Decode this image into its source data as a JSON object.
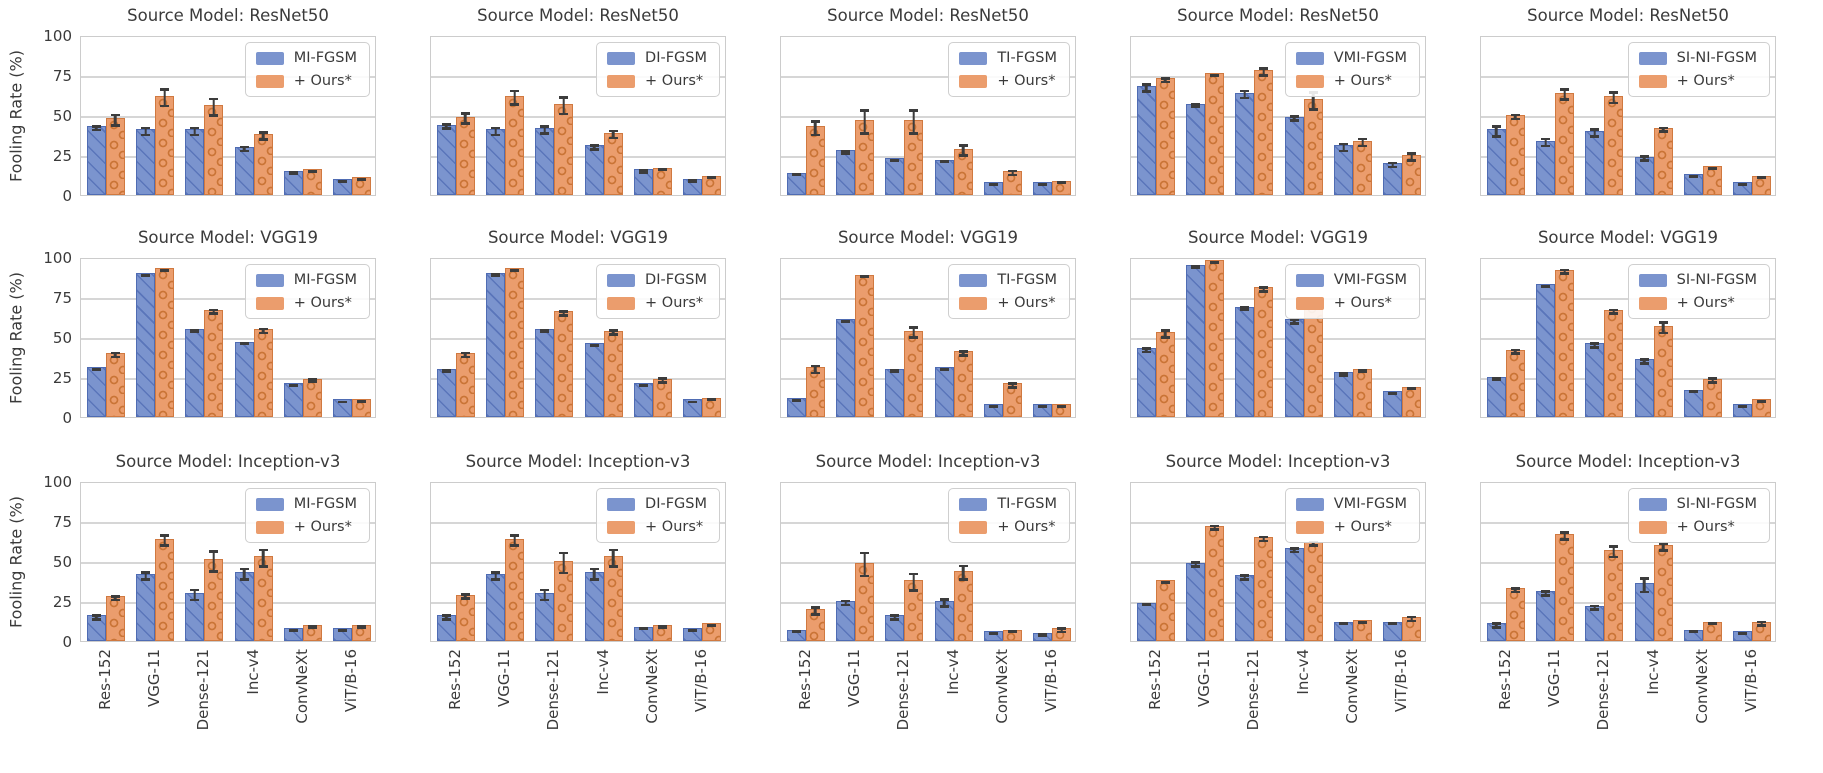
{
  "figure_title": "",
  "chart_data": {
    "type": "bar",
    "grid": {
      "rows": 3,
      "cols": 5
    },
    "categories": [
      "Res-152",
      "VGG-11",
      "Dense-121",
      "Inc-v4",
      "ConvNeXt",
      "ViT/B-16"
    ],
    "ylabel": "Fooling Rate (%)",
    "ylim": [
      0,
      100
    ],
    "yticks": [
      0,
      25,
      50,
      75,
      100
    ],
    "grid_on": true,
    "legend_position": "upper right",
    "colors": {
      "baseline_fill": "#7b94ce",
      "baseline_edge": "#4f6cb3",
      "ours_fill": "#eb9d6d",
      "ours_edge": "#d07940",
      "error_bar": "#3c3c3c",
      "gridline": "#d6d6d6",
      "text": "#3a3a3a"
    },
    "ours_label": "+ Ours*",
    "rows": [
      {
        "source_title": "Source Model: ResNet50",
        "panels": [
          {
            "baseline_label": "MI-FGSM",
            "baseline": {
              "values": [
                43,
                41,
                41,
                30,
                15,
                10
              ],
              "errors": [
                2,
                3,
                3,
                2,
                1.5,
                0.5
              ]
            },
            "ours": {
              "values": [
                48,
                62,
                56,
                38,
                16,
                11
              ],
              "errors": [
                4,
                6,
                6,
                3,
                1,
                1
              ]
            }
          },
          {
            "baseline_label": "DI-FGSM",
            "baseline": {
              "values": [
                44,
                41,
                42,
                31,
                16,
                10
              ],
              "errors": [
                2,
                3,
                3,
                2,
                1.5,
                1
              ]
            },
            "ours": {
              "values": [
                49,
                62,
                57,
                39,
                17,
                12
              ],
              "errors": [
                4,
                5,
                6,
                3,
                1,
                1
              ]
            }
          },
          {
            "baseline_label": "TI-FGSM",
            "baseline": {
              "values": [
                14,
                28,
                23,
                22,
                8,
                8
              ],
              "errors": [
                1,
                1.5,
                1,
                1,
                1,
                1
              ]
            },
            "ours": {
              "values": [
                43,
                47,
                47,
                29,
                15,
                9
              ],
              "errors": [
                5,
                8,
                8,
                4,
                2,
                1
              ]
            }
          },
          {
            "baseline_label": "VMI-FGSM",
            "baseline": {
              "values": [
                68,
                57,
                64,
                49,
                31,
                20
              ],
              "errors": [
                3,
                1.5,
                3,
                2,
                3,
                2
              ]
            },
            "ours": {
              "values": [
                73,
                76,
                78,
                60,
                34,
                25
              ],
              "errors": [
                2,
                1,
                3,
                6,
                3,
                3
              ]
            }
          },
          {
            "baseline_label": "SI-NI-FGSM",
            "baseline": {
              "values": [
                41,
                34,
                40,
                24,
                13,
                8
              ],
              "errors": [
                4,
                3,
                3,
                2,
                1,
                1
              ]
            },
            "ours": {
              "values": [
                50,
                64,
                62,
                42,
                18,
                12
              ],
              "errors": [
                2,
                4,
                4,
                2,
                1,
                1
              ]
            }
          }
        ]
      },
      {
        "source_title": "Source Model: VGG19",
        "panels": [
          {
            "baseline_label": "MI-FGSM",
            "baseline": {
              "values": [
                31,
                90,
                55,
                47,
                21,
                11
              ],
              "errors": [
                1,
                0.5,
                1,
                1,
                1,
                0.5
              ]
            },
            "ours": {
              "values": [
                40,
                93,
                67,
                55,
                24,
                11
              ],
              "errors": [
                2,
                1,
                2,
                2,
                1.5,
                1
              ]
            }
          },
          {
            "baseline_label": "DI-FGSM",
            "baseline": {
              "values": [
                30,
                90,
                55,
                46,
                21,
                11
              ],
              "errors": [
                1,
                1,
                1,
                1,
                1,
                0.5
              ]
            },
            "ours": {
              "values": [
                40,
                93,
                66,
                54,
                24,
                12
              ],
              "errors": [
                2,
                1,
                2,
                2,
                2,
                1
              ]
            }
          },
          {
            "baseline_label": "TI-FGSM",
            "baseline": {
              "values": [
                12,
                61,
                30,
                31,
                8,
                8
              ],
              "errors": [
                0.5,
                1,
                1,
                1,
                0.5,
                0.5
              ]
            },
            "ours": {
              "values": [
                31,
                89,
                54,
                41,
                21,
                8
              ],
              "errors": [
                3,
                1,
                4,
                2,
                2,
                1
              ]
            }
          },
          {
            "baseline_label": "VMI-FGSM",
            "baseline": {
              "values": [
                43,
                95,
                69,
                61,
                28,
                16
              ],
              "errors": [
                2,
                1,
                1.5,
                2,
                1.5,
                1
              ]
            },
            "ours": {
              "values": [
                53,
                98,
                81,
                72,
                30,
                19
              ],
              "errors": [
                3,
                1,
                2,
                2,
                1.5,
                1
              ]
            }
          },
          {
            "baseline_label": "SI-NI-FGSM",
            "baseline": {
              "values": [
                25,
                83,
                46,
                36,
                17,
                8
              ],
              "errors": [
                1.5,
                1,
                2,
                2,
                1,
                0.5
              ]
            },
            "ours": {
              "values": [
                42,
                92,
                67,
                57,
                24,
                11
              ],
              "errors": [
                2,
                2,
                2,
                4,
                2,
                1
              ]
            }
          }
        ]
      },
      {
        "source_title": "Source Model: Inception-v3",
        "panels": [
          {
            "baseline_label": "MI-FGSM",
            "baseline": {
              "values": [
                16,
                42,
                30,
                43,
                8,
                8
              ],
              "errors": [
                2,
                3,
                4,
                4,
                1,
                1
              ]
            },
            "ours": {
              "values": [
                28,
                64,
                51,
                53,
                10,
                10
              ],
              "errors": [
                2,
                4,
                7,
                6,
                1,
                1
              ]
            }
          },
          {
            "baseline_label": "DI-FGSM",
            "baseline": {
              "values": [
                16,
                42,
                30,
                43,
                9,
                8
              ],
              "errors": [
                2,
                3,
                4,
                4,
                1,
                1
              ]
            },
            "ours": {
              "values": [
                29,
                64,
                50,
                53,
                10,
                11
              ],
              "errors": [
                2,
                4,
                7,
                6,
                1,
                1
              ]
            }
          },
          {
            "baseline_label": "TI-FGSM",
            "baseline": {
              "values": [
                7,
                25,
                16,
                25,
                6,
                5
              ],
              "errors": [
                1,
                2,
                2,
                3,
                1,
                1
              ]
            },
            "ours": {
              "values": [
                20,
                49,
                38,
                44,
                7,
                8
              ],
              "errors": [
                3,
                8,
                6,
                5,
                1,
                2
              ]
            }
          },
          {
            "baseline_label": "VMI-FGSM",
            "baseline": {
              "values": [
                24,
                49,
                41,
                58,
                12,
                12
              ],
              "errors": [
                1,
                2,
                2,
                2,
                1,
                1
              ]
            },
            "ours": {
              "values": [
                38,
                72,
                65,
                62,
                13,
                15
              ],
              "errors": [
                1,
                2,
                2,
                2,
                1,
                2
              ]
            }
          },
          {
            "baseline_label": "SI-NI-FGSM",
            "baseline": {
              "values": [
                11,
                31,
                22,
                36,
                7,
                6
              ],
              "errors": [
                2,
                2,
                2,
                5,
                1,
                1
              ]
            },
            "ours": {
              "values": [
                33,
                67,
                57,
                60,
                12,
                12
              ],
              "errors": [
                2,
                3,
                4,
                3,
                1,
                2
              ]
            }
          }
        ]
      }
    ]
  }
}
